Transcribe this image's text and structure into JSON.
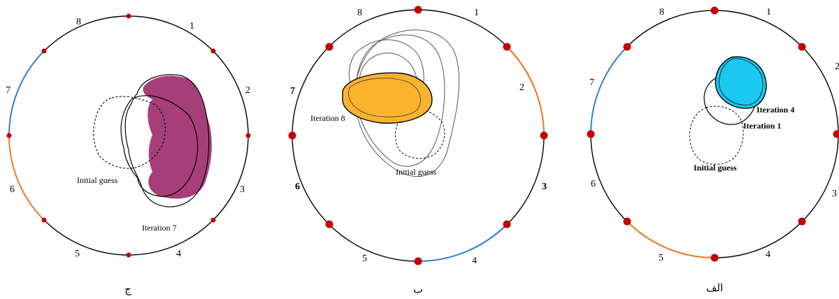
{
  "panels": [
    {
      "caption": "ج",
      "electrode_labels": [
        "1",
        "2",
        "3",
        "4",
        "5",
        "6",
        "7",
        "8"
      ],
      "labels": {
        "initial": "Initial guess",
        "iteration": "Iteration 7"
      },
      "colors": {
        "fill": "#a63f79",
        "blue_arc": "#3a7fd5",
        "orange_arc": "#f07a24",
        "electrode": "#c40000"
      }
    },
    {
      "caption": "ب",
      "electrode_labels": [
        "1",
        "2",
        "3",
        "4",
        "5",
        "6",
        "7",
        "8"
      ],
      "labels": {
        "initial": "Initial guess",
        "iteration": "Iteration 8"
      },
      "colors": {
        "fill": "#fbb32f",
        "blue_arc": "#3a7fd5",
        "orange_arc": "#f07a24",
        "electrode": "#c40000"
      }
    },
    {
      "caption": "الف",
      "electrode_labels": [
        "1",
        "2",
        "3",
        "4",
        "5",
        "6",
        "7",
        "8"
      ],
      "labels": {
        "initial": "Initial guess",
        "iteration_1": "Iteration 1",
        "iteration_4": "Iteration 4"
      },
      "colors": {
        "fill": "#1ac8f0",
        "blue_arc": "#3a7fd5",
        "orange_arc": "#f07a24",
        "electrode": "#c40000"
      }
    }
  ]
}
